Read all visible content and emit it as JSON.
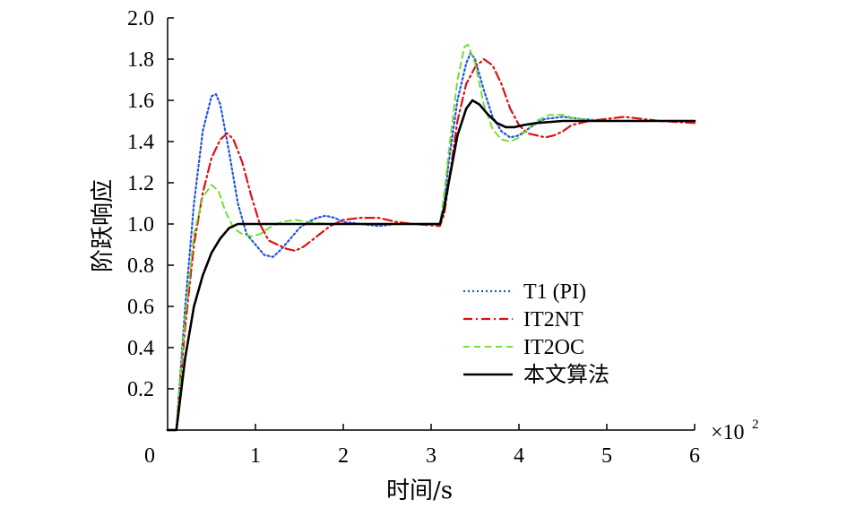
{
  "chart_data": {
    "type": "line",
    "xlabel": "时间/s",
    "ylabel": "阶跃响应",
    "x_multiplier": "×10",
    "x_multiplier_exp": "2",
    "xlim": [
      0,
      6
    ],
    "ylim": [
      0,
      2.0
    ],
    "x_ticks": [
      "0",
      "1",
      "2",
      "3",
      "4",
      "5",
      "6"
    ],
    "y_ticks": [
      "0.2",
      "0.4",
      "0.6",
      "0.8",
      "1.0",
      "1.2",
      "1.4",
      "1.6",
      "1.8",
      "2.0"
    ],
    "grid": false,
    "legend_position": "lower-right",
    "series": [
      {
        "name": "T1 (PI)",
        "color": "#2255dd",
        "dash": "dotted",
        "points": [
          [
            0,
            0
          ],
          [
            0.1,
            0
          ],
          [
            0.2,
            0.6
          ],
          [
            0.3,
            1.1
          ],
          [
            0.4,
            1.45
          ],
          [
            0.5,
            1.62
          ],
          [
            0.55,
            1.63
          ],
          [
            0.6,
            1.58
          ],
          [
            0.7,
            1.35
          ],
          [
            0.8,
            1.1
          ],
          [
            0.9,
            0.95
          ],
          [
            1.0,
            0.9
          ],
          [
            1.1,
            0.85
          ],
          [
            1.2,
            0.84
          ],
          [
            1.3,
            0.88
          ],
          [
            1.4,
            0.93
          ],
          [
            1.5,
            0.98
          ],
          [
            1.6,
            1.01
          ],
          [
            1.7,
            1.03
          ],
          [
            1.8,
            1.04
          ],
          [
            1.9,
            1.03
          ],
          [
            2.0,
            1.01
          ],
          [
            2.2,
            1.0
          ],
          [
            2.4,
            0.99
          ],
          [
            2.6,
            1.0
          ],
          [
            3.0,
            1.0
          ],
          [
            3.1,
            1.0
          ],
          [
            3.15,
            1.1
          ],
          [
            3.2,
            1.3
          ],
          [
            3.3,
            1.6
          ],
          [
            3.4,
            1.78
          ],
          [
            3.45,
            1.83
          ],
          [
            3.5,
            1.8
          ],
          [
            3.6,
            1.65
          ],
          [
            3.7,
            1.52
          ],
          [
            3.8,
            1.45
          ],
          [
            3.9,
            1.42
          ],
          [
            4.0,
            1.43
          ],
          [
            4.1,
            1.46
          ],
          [
            4.2,
            1.49
          ],
          [
            4.3,
            1.51
          ],
          [
            4.5,
            1.52
          ],
          [
            4.7,
            1.51
          ],
          [
            5.0,
            1.5
          ],
          [
            6.0,
            1.5
          ]
        ]
      },
      {
        "name": "IT2NT",
        "color": "#dd1111",
        "dash": "dashdot",
        "points": [
          [
            0,
            0
          ],
          [
            0.1,
            0
          ],
          [
            0.2,
            0.5
          ],
          [
            0.3,
            0.9
          ],
          [
            0.4,
            1.15
          ],
          [
            0.5,
            1.32
          ],
          [
            0.6,
            1.41
          ],
          [
            0.68,
            1.44
          ],
          [
            0.75,
            1.41
          ],
          [
            0.85,
            1.3
          ],
          [
            0.95,
            1.14
          ],
          [
            1.05,
            1.0
          ],
          [
            1.15,
            0.92
          ],
          [
            1.25,
            0.9
          ],
          [
            1.35,
            0.88
          ],
          [
            1.45,
            0.87
          ],
          [
            1.55,
            0.89
          ],
          [
            1.7,
            0.94
          ],
          [
            1.85,
            0.99
          ],
          [
            2.0,
            1.02
          ],
          [
            2.2,
            1.03
          ],
          [
            2.4,
            1.03
          ],
          [
            2.6,
            1.01
          ],
          [
            2.8,
            1.0
          ],
          [
            3.1,
            0.99
          ],
          [
            3.15,
            1.05
          ],
          [
            3.2,
            1.2
          ],
          [
            3.3,
            1.5
          ],
          [
            3.4,
            1.68
          ],
          [
            3.5,
            1.76
          ],
          [
            3.6,
            1.8
          ],
          [
            3.7,
            1.77
          ],
          [
            3.8,
            1.68
          ],
          [
            3.9,
            1.56
          ],
          [
            4.0,
            1.48
          ],
          [
            4.1,
            1.44
          ],
          [
            4.2,
            1.43
          ],
          [
            4.3,
            1.42
          ],
          [
            4.4,
            1.43
          ],
          [
            4.5,
            1.45
          ],
          [
            4.6,
            1.48
          ],
          [
            4.8,
            1.5
          ],
          [
            5.0,
            1.51
          ],
          [
            5.2,
            1.52
          ],
          [
            5.4,
            1.51
          ],
          [
            5.6,
            1.5
          ],
          [
            6.0,
            1.49
          ]
        ]
      },
      {
        "name": "IT2OC",
        "color": "#66dd22",
        "dash": "dashed",
        "points": [
          [
            0,
            0
          ],
          [
            0.1,
            0
          ],
          [
            0.2,
            0.55
          ],
          [
            0.3,
            0.95
          ],
          [
            0.4,
            1.13
          ],
          [
            0.5,
            1.19
          ],
          [
            0.58,
            1.16
          ],
          [
            0.65,
            1.07
          ],
          [
            0.75,
            0.98
          ],
          [
            0.85,
            0.95
          ],
          [
            0.95,
            0.94
          ],
          [
            1.05,
            0.95
          ],
          [
            1.15,
            0.98
          ],
          [
            1.3,
            1.01
          ],
          [
            1.45,
            1.02
          ],
          [
            1.6,
            1.01
          ],
          [
            1.8,
            1.0
          ],
          [
            2.0,
            1.0
          ],
          [
            2.5,
            1.0
          ],
          [
            3.0,
            1.0
          ],
          [
            3.1,
            1.0
          ],
          [
            3.15,
            1.15
          ],
          [
            3.2,
            1.35
          ],
          [
            3.3,
            1.7
          ],
          [
            3.38,
            1.86
          ],
          [
            3.42,
            1.87
          ],
          [
            3.5,
            1.78
          ],
          [
            3.6,
            1.58
          ],
          [
            3.7,
            1.46
          ],
          [
            3.8,
            1.41
          ],
          [
            3.9,
            1.4
          ],
          [
            4.0,
            1.42
          ],
          [
            4.1,
            1.46
          ],
          [
            4.2,
            1.5
          ],
          [
            4.35,
            1.53
          ],
          [
            4.5,
            1.53
          ],
          [
            4.65,
            1.51
          ],
          [
            5.0,
            1.5
          ],
          [
            6.0,
            1.5
          ]
        ]
      },
      {
        "name": "本文算法",
        "color": "#000000",
        "dash": "solid",
        "points": [
          [
            0,
            0
          ],
          [
            0.1,
            0
          ],
          [
            0.2,
            0.35
          ],
          [
            0.3,
            0.6
          ],
          [
            0.4,
            0.75
          ],
          [
            0.5,
            0.86
          ],
          [
            0.6,
            0.93
          ],
          [
            0.7,
            0.98
          ],
          [
            0.8,
            1.0
          ],
          [
            0.9,
            1.0
          ],
          [
            1.5,
            1.0
          ],
          [
            2.0,
            1.0
          ],
          [
            2.5,
            1.0
          ],
          [
            3.0,
            1.0
          ],
          [
            3.1,
            1.0
          ],
          [
            3.15,
            1.08
          ],
          [
            3.2,
            1.2
          ],
          [
            3.3,
            1.43
          ],
          [
            3.4,
            1.56
          ],
          [
            3.47,
            1.6
          ],
          [
            3.55,
            1.58
          ],
          [
            3.65,
            1.53
          ],
          [
            3.75,
            1.49
          ],
          [
            3.85,
            1.47
          ],
          [
            3.95,
            1.47
          ],
          [
            4.05,
            1.48
          ],
          [
            4.2,
            1.49
          ],
          [
            4.5,
            1.5
          ],
          [
            5.0,
            1.5
          ],
          [
            6.0,
            1.5
          ]
        ]
      }
    ]
  }
}
